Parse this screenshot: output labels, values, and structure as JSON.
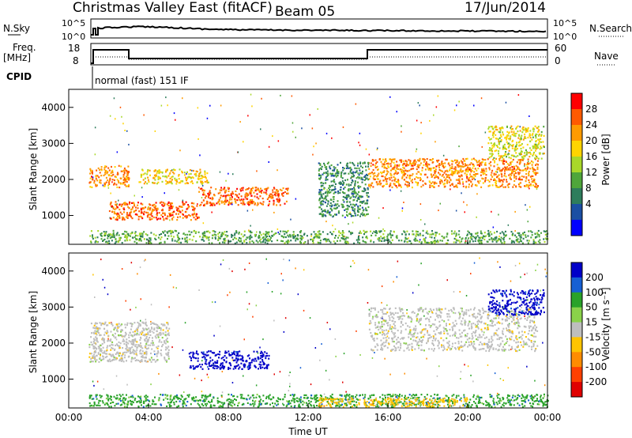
{
  "header": {
    "station": "Christmas Valley East (fitACF)",
    "beam": "Beam 05",
    "date": "17/Jun/2014"
  },
  "top_panels": {
    "nsky_label": "N.Sky",
    "nsky_ticks": [
      "10^5",
      "10^0"
    ],
    "nsearch_label": "N.Search",
    "nsearch_ticks": [
      "10^5",
      "10^0"
    ],
    "freq_label_1": "Freq.",
    "freq_label_2": "[MHz]",
    "freq_ticks": [
      "18",
      "8"
    ],
    "nave_label": "Nave",
    "nave_ticks": [
      "60",
      "0"
    ],
    "cpid_label": "CPID",
    "cpid_value": "normal (fast) 151 IF"
  },
  "colorbars": {
    "power": {
      "label": "Power [dB]",
      "ticks": [
        "28",
        "24",
        "20",
        "16",
        "12",
        "8",
        "4"
      ],
      "colors": [
        "#ff0000",
        "#ff5a00",
        "#ff9b00",
        "#ffd400",
        "#a9d82a",
        "#4fa63b",
        "#2e7d5c",
        "#1b4fa3",
        "#0000ff"
      ]
    },
    "velocity": {
      "label": "Velocity [m s⁻¹]",
      "ticks": [
        "200",
        "100",
        "50",
        "15",
        "-15",
        "-50",
        "-100",
        "-200"
      ],
      "colors": [
        "#0000c8",
        "#1660d4",
        "#2aa22a",
        "#8ad24a",
        "#bebebe",
        "#ffc400",
        "#ff8c00",
        "#ff4000",
        "#e00000"
      ]
    }
  },
  "chart_data": [
    {
      "type": "heatmap",
      "title": "Power",
      "xlabel": "",
      "ylabel": "Slant Range [km]",
      "x_ticks": [
        "00:00",
        "04:00",
        "08:00",
        "12:00",
        "16:00",
        "20:00",
        "00:00"
      ],
      "y_ticks": [
        "1000",
        "2000",
        "3000",
        "4000"
      ],
      "xlim": [
        0,
        24
      ],
      "ylim": [
        200,
        4500
      ],
      "colorbar": "Power [dB]",
      "regions": [
        {
          "x": [
            1.0,
            3.0
          ],
          "y": [
            1800,
            2400
          ],
          "value": 22
        },
        {
          "x": [
            2.0,
            6.5
          ],
          "y": [
            900,
            1400
          ],
          "value": 24
        },
        {
          "x": [
            6.5,
            11.0
          ],
          "y": [
            1300,
            1800
          ],
          "value": 24
        },
        {
          "x": [
            3.5,
            7.0
          ],
          "y": [
            1900,
            2300
          ],
          "value": 18
        },
        {
          "x": [
            15.0,
            23.5
          ],
          "y": [
            1800,
            2600
          ],
          "value": 22
        },
        {
          "x": [
            21.0,
            23.8
          ],
          "y": [
            2600,
            3500
          ],
          "value": 16
        },
        {
          "x": [
            12.5,
            15.0
          ],
          "y": [
            1000,
            2500
          ],
          "value": 8
        },
        {
          "x": [
            1.0,
            24.0
          ],
          "y": [
            250,
            600
          ],
          "value": 10
        }
      ]
    },
    {
      "type": "heatmap",
      "title": "Velocity",
      "xlabel": "Time UT",
      "ylabel": "Slant Range [km]",
      "x_ticks": [
        "00:00",
        "04:00",
        "08:00",
        "12:00",
        "16:00",
        "20:00",
        "00:00"
      ],
      "y_ticks": [
        "1000",
        "2000",
        "3000",
        "4000"
      ],
      "xlim": [
        0,
        24
      ],
      "ylim": [
        200,
        4500
      ],
      "colorbar": "Velocity [m s⁻¹]",
      "regions": [
        {
          "x": [
            1.0,
            5.0
          ],
          "y": [
            1500,
            2600
          ],
          "value": 0
        },
        {
          "x": [
            6.0,
            10.0
          ],
          "y": [
            1300,
            1800
          ],
          "value": 150
        },
        {
          "x": [
            15.0,
            23.5
          ],
          "y": [
            1800,
            3000
          ],
          "value": 0
        },
        {
          "x": [
            21.0,
            23.8
          ],
          "y": [
            2800,
            3500
          ],
          "value": 200
        },
        {
          "x": [
            1.0,
            24.0
          ],
          "y": [
            250,
            600
          ],
          "value": 40
        },
        {
          "x": [
            12.5,
            20.0
          ],
          "y": [
            250,
            500
          ],
          "value": -50
        }
      ]
    }
  ]
}
